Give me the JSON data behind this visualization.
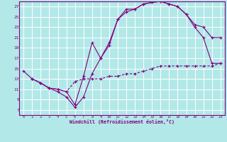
{
  "xlabel": "Windchill (Refroidissement éolien,°C)",
  "background_color": "#b3e8e8",
  "grid_color": "#ffffff",
  "line_color": "#800080",
  "xlim": [
    -0.5,
    23.5
  ],
  "ylim": [
    6,
    28
  ],
  "xticks": [
    0,
    1,
    2,
    3,
    4,
    5,
    6,
    7,
    8,
    9,
    10,
    11,
    12,
    13,
    14,
    15,
    16,
    17,
    18,
    19,
    20,
    21,
    22,
    23
  ],
  "yticks": [
    7,
    9,
    11,
    13,
    15,
    17,
    19,
    21,
    23,
    25,
    27
  ],
  "curve1_x": [
    0,
    1,
    2,
    3,
    4,
    5,
    6,
    7,
    8,
    9,
    10,
    11,
    12,
    13,
    14,
    15,
    16,
    17,
    18,
    19,
    20,
    21,
    22,
    23
  ],
  "curve1_y": [
    14.5,
    13.0,
    12.2,
    11.2,
    10.5,
    9.5,
    7.5,
    9.5,
    14.0,
    17.0,
    20.0,
    24.5,
    26.5,
    26.5,
    27.5,
    27.8,
    28.0,
    27.5,
    27.0,
    25.5,
    23.0,
    21.0,
    16.0,
    16.0
  ],
  "curve2_x": [
    1,
    2,
    3,
    4,
    5,
    6,
    7,
    8,
    9,
    10,
    11,
    12,
    13,
    14,
    15,
    16,
    17,
    18,
    19,
    20,
    21,
    22,
    23
  ],
  "curve2_y": [
    13.0,
    12.2,
    11.2,
    11.0,
    10.5,
    8.0,
    13.5,
    20.0,
    17.0,
    19.5,
    24.5,
    26.0,
    26.5,
    27.5,
    27.8,
    28.0,
    27.5,
    27.0,
    25.5,
    23.5,
    23.0,
    21.0,
    21.0
  ],
  "curve3_x": [
    1,
    2,
    3,
    4,
    5,
    6,
    7,
    8,
    9,
    10,
    11,
    12,
    13,
    14,
    15,
    16,
    17,
    18,
    19,
    20,
    21,
    22,
    23
  ],
  "curve3_y": [
    13.0,
    12.2,
    11.2,
    11.0,
    10.5,
    12.5,
    13.0,
    13.0,
    13.0,
    13.5,
    13.5,
    14.0,
    14.0,
    14.5,
    15.0,
    15.5,
    15.5,
    15.5,
    15.5,
    15.5,
    15.5,
    15.5,
    16.0
  ]
}
